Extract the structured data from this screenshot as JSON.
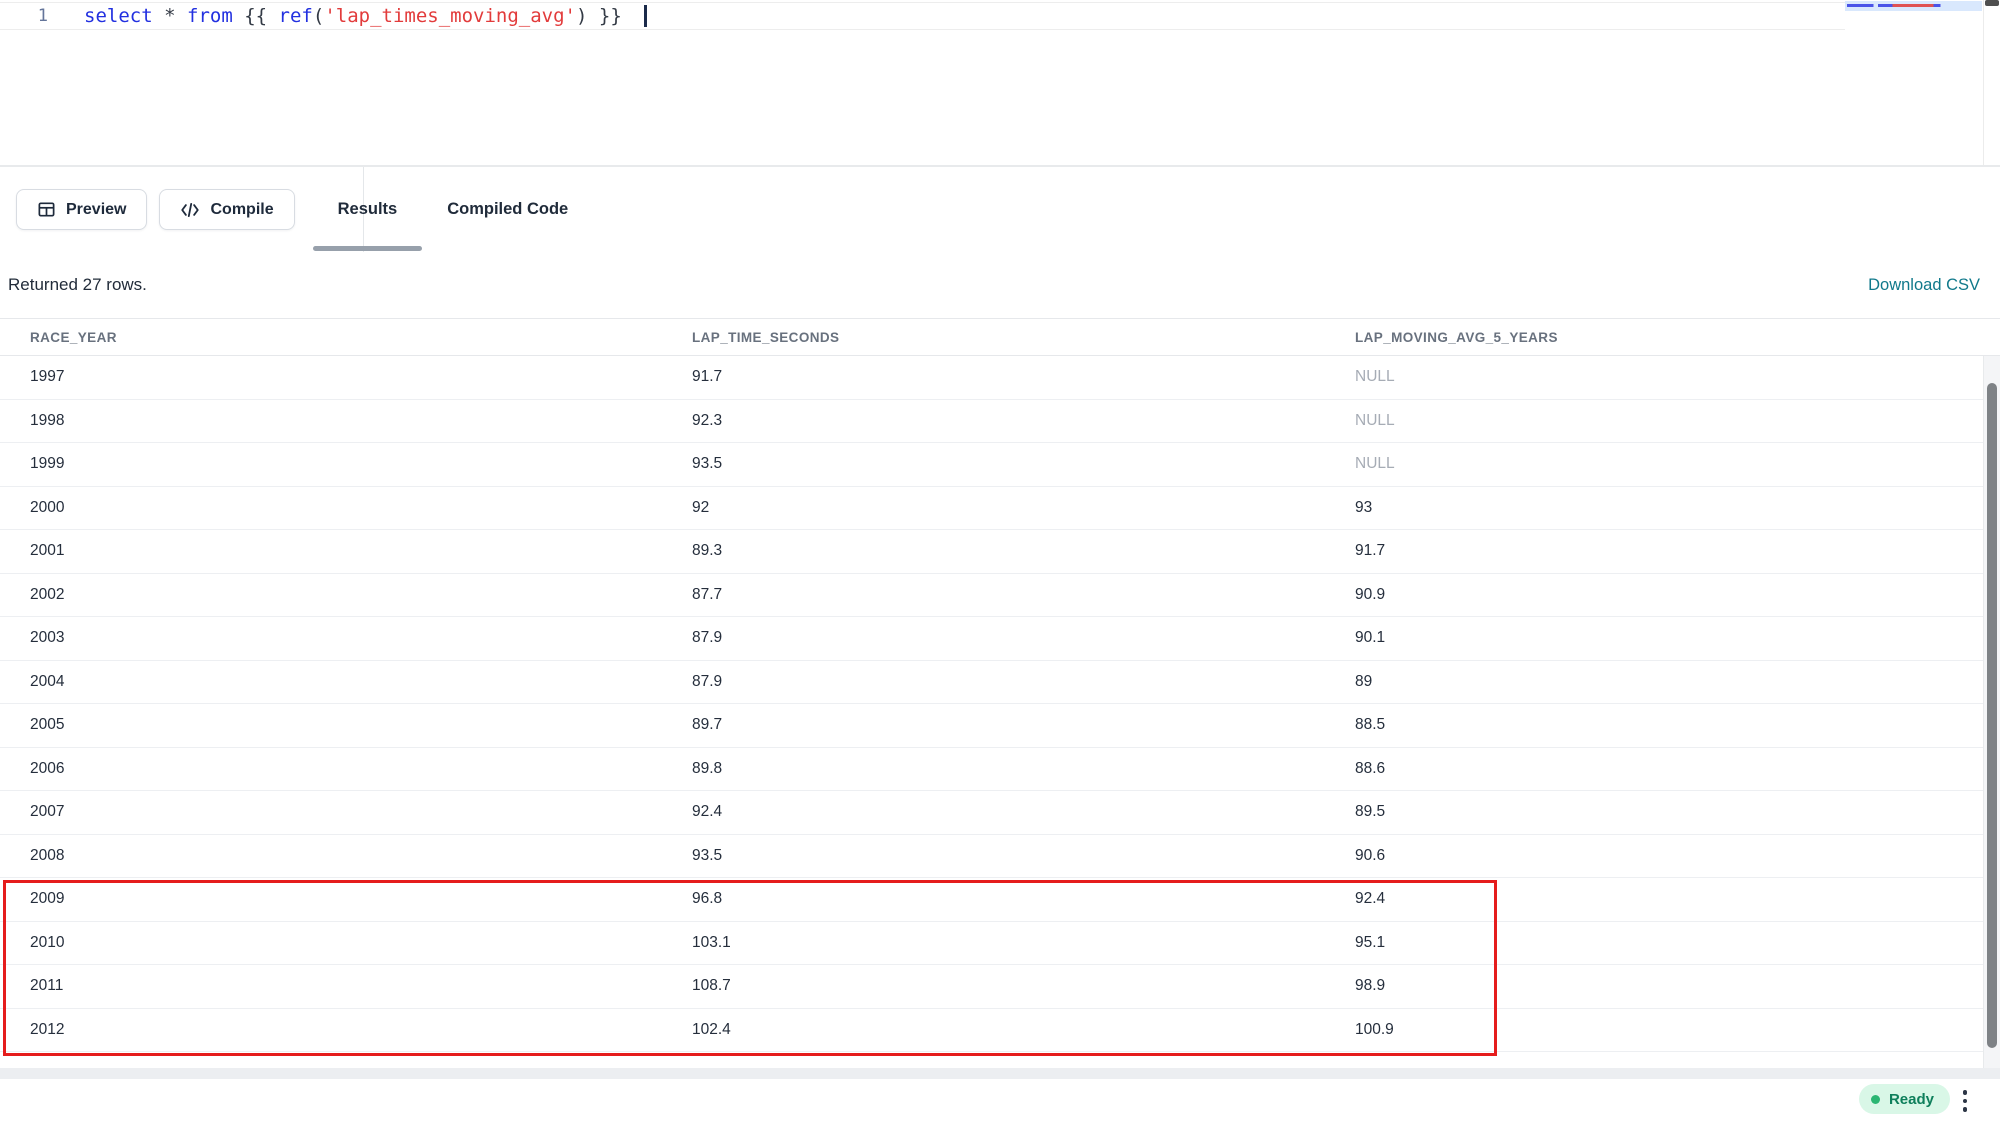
{
  "editor": {
    "line_number": "1",
    "full_code": "select * from {{ ref('lap_times_moving_avg') }}",
    "code_tokens": [
      {
        "text": "select",
        "type": "k"
      },
      {
        "text": " ",
        "type": "p"
      },
      {
        "text": "*",
        "type": "p"
      },
      {
        "text": " ",
        "type": "p"
      },
      {
        "text": "from",
        "type": "k"
      },
      {
        "text": " {{ ",
        "type": "p"
      },
      {
        "text": "ref",
        "type": "k"
      },
      {
        "text": "(",
        "type": "p"
      },
      {
        "text": "'lap_times_moving_avg'",
        "type": "s"
      },
      {
        "text": ")",
        "type": "p"
      },
      {
        "text": " }}",
        "type": "p"
      }
    ]
  },
  "toolbar": {
    "preview_label": "Preview",
    "compile_label": "Compile"
  },
  "tabs": [
    {
      "label": "Results",
      "active": true
    },
    {
      "label": "Compiled Code",
      "active": false
    }
  ],
  "results_bar": {
    "summary": "Returned 27 rows.",
    "download_label": "Download CSV"
  },
  "table": {
    "columns": [
      "RACE_YEAR",
      "LAP_TIME_SECONDS",
      "LAP_MOVING_AVG_5_YEARS"
    ],
    "rows": [
      [
        "1997",
        "91.7",
        "NULL"
      ],
      [
        "1998",
        "92.3",
        "NULL"
      ],
      [
        "1999",
        "93.5",
        "NULL"
      ],
      [
        "2000",
        "92",
        "93"
      ],
      [
        "2001",
        "89.3",
        "91.7"
      ],
      [
        "2002",
        "87.7",
        "90.9"
      ],
      [
        "2003",
        "87.9",
        "90.1"
      ],
      [
        "2004",
        "87.9",
        "89"
      ],
      [
        "2005",
        "89.7",
        "88.5"
      ],
      [
        "2006",
        "89.8",
        "88.6"
      ],
      [
        "2007",
        "92.4",
        "89.5"
      ],
      [
        "2008",
        "93.5",
        "90.6"
      ],
      [
        "2009",
        "96.8",
        "92.4"
      ],
      [
        "2010",
        "103.1",
        "95.1"
      ],
      [
        "2011",
        "108.7",
        "98.9"
      ],
      [
        "2012",
        "102.4",
        "100.9"
      ]
    ],
    "null_display": "NULL",
    "highlighted_years": [
      "2009",
      "2010",
      "2011",
      "2012"
    ]
  },
  "status_bar": {
    "ready_label": "Ready"
  },
  "colors": {
    "accent_teal": "#10798b",
    "keyword_blue": "#2230e0",
    "string_red": "#e23b3b",
    "highlight_red": "#e51c1c",
    "ready_bg": "#d9f7e7",
    "ready_dot": "#2bb673",
    "ready_text": "#0e7f5b"
  }
}
